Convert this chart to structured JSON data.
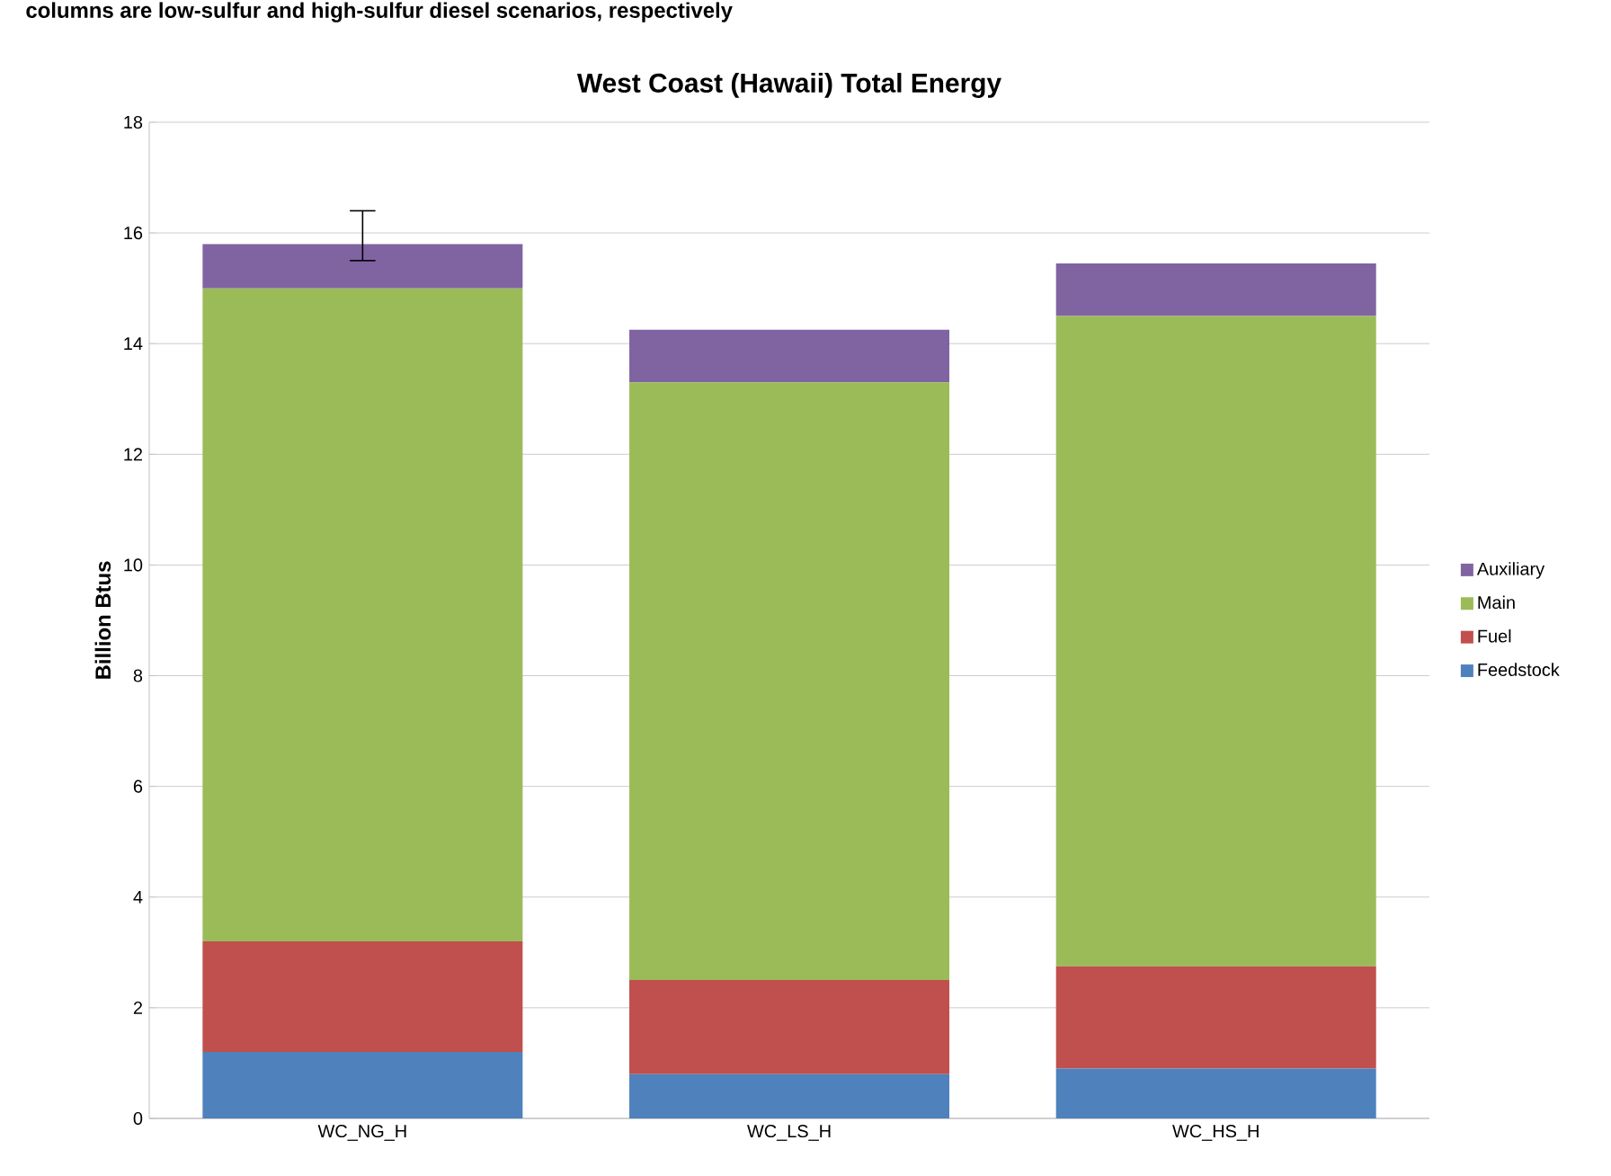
{
  "chart_data": {
    "type": "bar",
    "stacked": true,
    "title": "West Coast (Hawaii) Total Energy",
    "ylabel": "Billion Btus",
    "annotations": [
      "columns are low-sulfur and high-sulfur diesel scenarios, respectively"
    ],
    "categories": [
      "WC_NG_H",
      "WC_LS_H",
      "WC_HS_H"
    ],
    "series": [
      {
        "name": "Feedstock",
        "color": "#4f81bd",
        "values": [
          1.2,
          0.8,
          0.9
        ]
      },
      {
        "name": "Fuel",
        "color": "#c0504d",
        "values": [
          2.0,
          1.7,
          1.85
        ]
      },
      {
        "name": "Main",
        "color": "#9bbb59",
        "values": [
          11.8,
          10.8,
          11.75
        ]
      },
      {
        "name": "Auxiliary",
        "color": "#8064a2",
        "values": [
          0.8,
          0.95,
          0.95
        ],
        "errors": [
          [
            15.5,
            16.4
          ],
          null,
          null
        ]
      }
    ],
    "ylim": [
      0,
      18
    ],
    "yticks": [
      0,
      2,
      4,
      6,
      8,
      10,
      12,
      14,
      16,
      18
    ],
    "grid": "y",
    "legend": "right"
  }
}
